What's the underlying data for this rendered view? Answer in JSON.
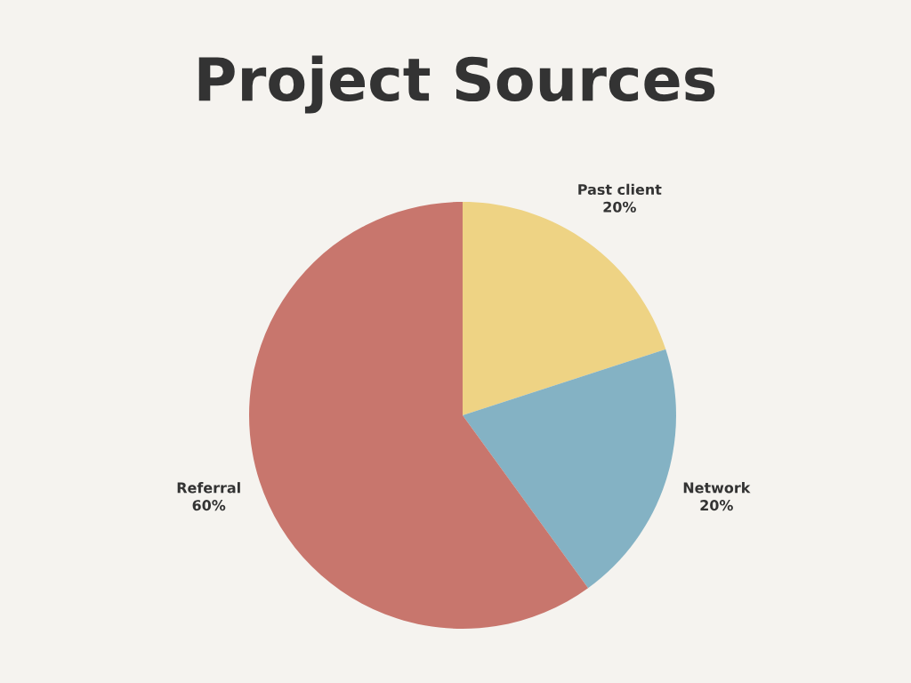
{
  "chart_data": {
    "type": "pie",
    "title": "Project Sources",
    "categories": [
      "Past client",
      "Network",
      "Referral"
    ],
    "values": [
      20,
      20,
      60
    ],
    "value_labels": [
      "20%",
      "20%",
      "60%"
    ],
    "colors": [
      "#eed384",
      "#84b2c4",
      "#c8766d"
    ],
    "legend": false
  }
}
